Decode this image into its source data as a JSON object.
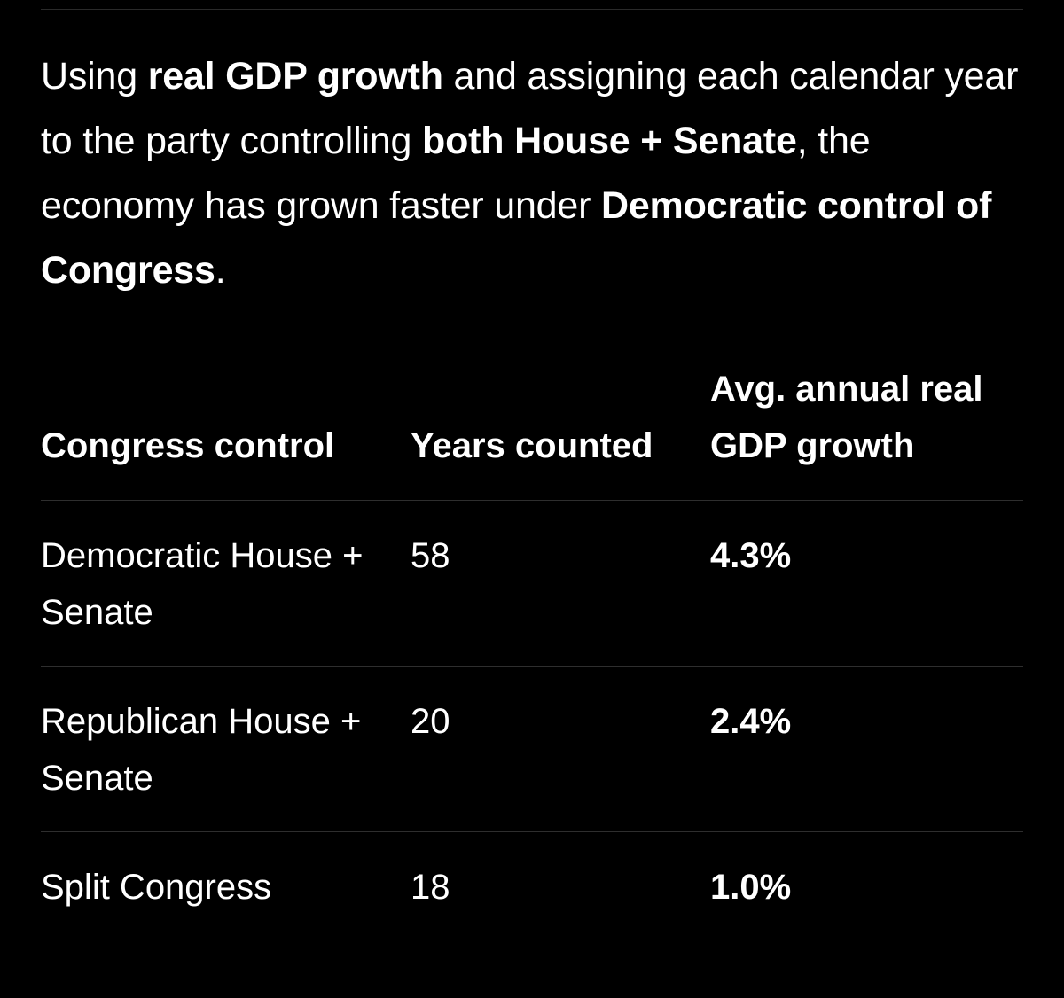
{
  "intro": {
    "t1": "Using ",
    "b1": "real GDP growth",
    "t2": " and assigning each calendar year to the party controlling ",
    "b2": "both House + Senate",
    "t3": ", the economy has grown faster under ",
    "b3": "Democratic control of Congress",
    "t4": "."
  },
  "table": {
    "headers": {
      "control": "Congress control",
      "years": "Years counted",
      "growth": "Avg. annual real GDP growth"
    },
    "rows": [
      {
        "control": "Democratic House + Senate",
        "years": "58",
        "growth": "4.3%"
      },
      {
        "control": "Republican House + Senate",
        "years": "20",
        "growth": "2.4%"
      },
      {
        "control": "Split Congress",
        "years": "18",
        "growth": "1.0%"
      }
    ]
  }
}
